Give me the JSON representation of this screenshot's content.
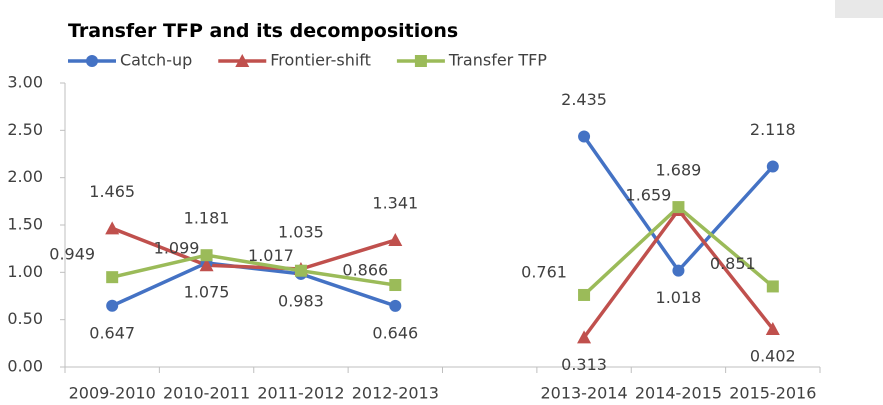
{
  "chart_data": {
    "type": "line",
    "title": "Transfer TFP and its decompositions",
    "categories": [
      "2009-2010",
      "2010-2011",
      "2011-2012",
      "2012-2013",
      null,
      "2013-2014",
      "2014-2015",
      "2015-2016"
    ],
    "series": [
      {
        "name": "Catch-up",
        "color": "#4472c4",
        "marker": "circle",
        "values": [
          0.647,
          1.099,
          0.983,
          0.646,
          null,
          2.435,
          1.018,
          2.118
        ]
      },
      {
        "name": "Frontier-shift",
        "color": "#c0504d",
        "marker": "triangle",
        "values": [
          1.465,
          1.075,
          1.035,
          1.341,
          null,
          0.313,
          1.659,
          0.402
        ]
      },
      {
        "name": "Transfer TFP",
        "color": "#9bbb59",
        "marker": "square",
        "values": [
          0.949,
          1.181,
          1.017,
          0.866,
          null,
          0.761,
          1.689,
          0.851
        ]
      }
    ],
    "ylim": [
      0,
      3
    ],
    "yticks": [
      {
        "value": 0,
        "label": "0.00"
      },
      {
        "value": 0.5,
        "label": "0.50"
      },
      {
        "value": 1,
        "label": "1.00"
      },
      {
        "value": 1.5,
        "label": "1.50"
      },
      {
        "value": 2,
        "label": "2.00"
      },
      {
        "value": 2.5,
        "label": "2.50"
      },
      {
        "value": 3,
        "label": "3.00"
      }
    ],
    "grid": false,
    "legend": "top-left"
  }
}
